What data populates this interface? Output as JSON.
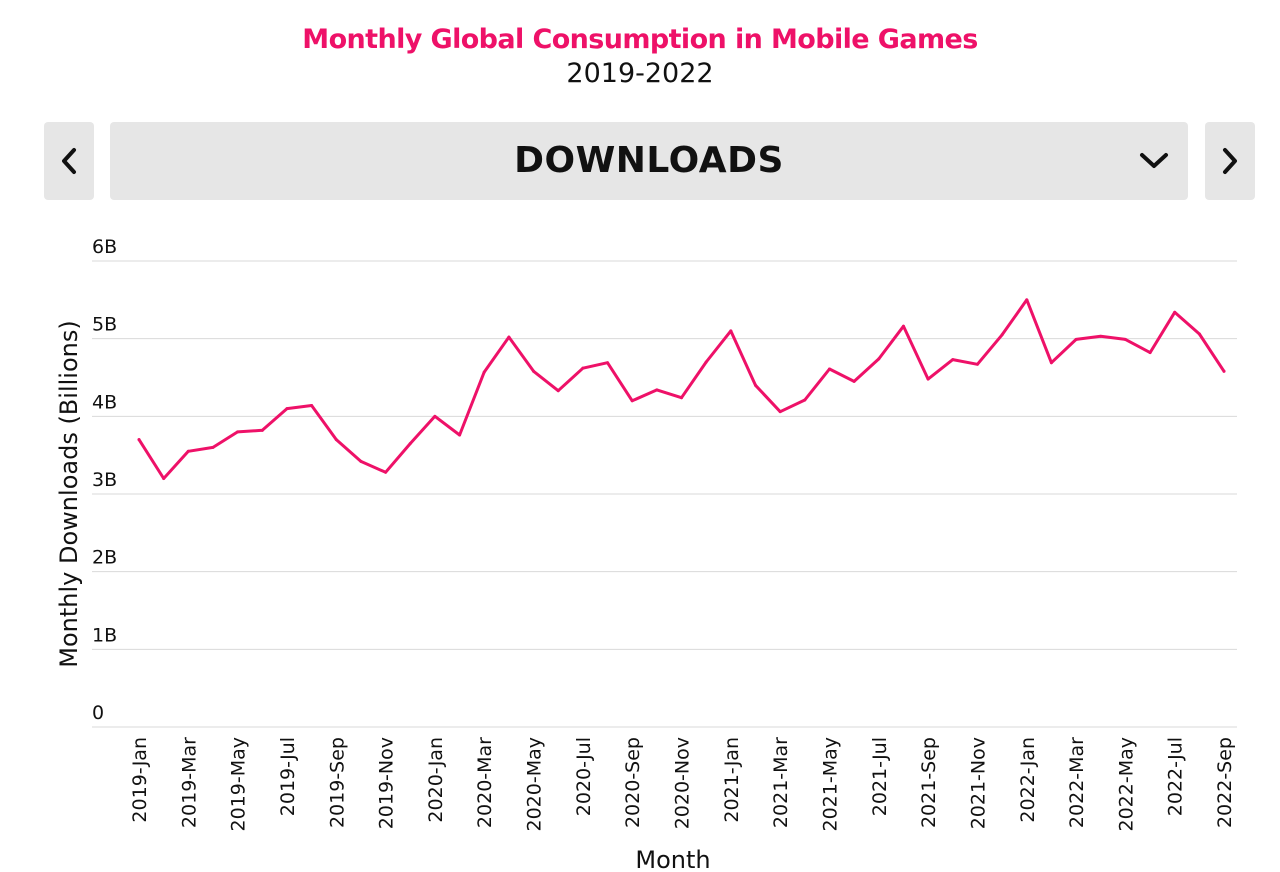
{
  "header": {
    "title": "Monthly Global Consumption in Mobile Games",
    "subtitle": "2019-2022"
  },
  "selector": {
    "label": "DOWNLOADS",
    "prev_icon": "chevron-left-icon",
    "next_icon": "chevron-right-icon",
    "dropdown_icon": "chevron-down-icon"
  },
  "colors": {
    "accent": "#ee1168",
    "line": "#ee1168",
    "grid": "#d9d9d9",
    "button_bg": "#e6e6e6"
  },
  "chart_data": {
    "type": "line",
    "xlabel": "Month",
    "ylabel": "Monthly Downloads (Billions)",
    "ylim": [
      0,
      6
    ],
    "yticks": [
      0,
      1,
      2,
      3,
      4,
      5,
      6
    ],
    "ytick_labels": [
      "0",
      "1B",
      "2B",
      "3B",
      "4B",
      "5B",
      "6B"
    ],
    "grid": "horizontal",
    "x": [
      "2019-Jan",
      "2019-Feb",
      "2019-Mar",
      "2019-Apr",
      "2019-May",
      "2019-Jun",
      "2019-Jul",
      "2019-Aug",
      "2019-Sep",
      "2019-Oct",
      "2019-Nov",
      "2019-Dec",
      "2020-Jan",
      "2020-Feb",
      "2020-Mar",
      "2020-Apr",
      "2020-May",
      "2020-Jun",
      "2020-Jul",
      "2020-Aug",
      "2020-Sep",
      "2020-Oct",
      "2020-Nov",
      "2020-Dec",
      "2021-Jan",
      "2021-Feb",
      "2021-Mar",
      "2021-Apr",
      "2021-May",
      "2021-Jun",
      "2021-Jul",
      "2021-Aug",
      "2021-Sep",
      "2021-Oct",
      "2021-Nov",
      "2021-Dec",
      "2022-Jan",
      "2022-Feb",
      "2022-Mar",
      "2022-Apr",
      "2022-May",
      "2022-Jun",
      "2022-Jul",
      "2022-Aug",
      "2022-Sep"
    ],
    "xtick_labels": [
      "2019-Jan",
      "2019-Mar",
      "2019-May",
      "2019-Jul",
      "2019-Sep",
      "2019-Nov",
      "2020-Jan",
      "2020-Mar",
      "2020-May",
      "2020-Jul",
      "2020-Sep",
      "2020-Nov",
      "2021-Jan",
      "2021-Mar",
      "2021-May",
      "2021-Jul",
      "2021-Sep",
      "2021-Nov",
      "2022-Jan",
      "2022-Mar",
      "2022-May",
      "2022-Jul",
      "2022-Sep"
    ],
    "series": [
      {
        "values": [
          3.7,
          3.2,
          3.55,
          3.6,
          3.8,
          3.82,
          4.1,
          4.14,
          3.7,
          3.42,
          3.28,
          3.65,
          4.0,
          3.76,
          4.57,
          5.02,
          4.58,
          4.33,
          4.62,
          4.69,
          4.2,
          4.34,
          4.24,
          4.7,
          5.1,
          4.4,
          4.06,
          4.21,
          4.61,
          4.45,
          4.74,
          5.16,
          4.48,
          4.73,
          4.67,
          5.05,
          5.5,
          4.69,
          4.99,
          5.03,
          4.99,
          4.82,
          5.34,
          5.06,
          4.58
        ]
      }
    ]
  }
}
